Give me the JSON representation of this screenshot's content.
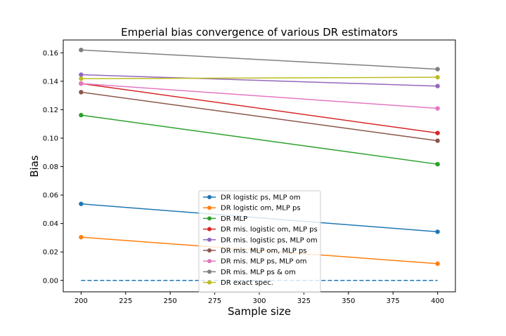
{
  "chart_data": {
    "type": "line",
    "title": "Emperial bias convergence of various DR estimators",
    "xlabel": "Sample size",
    "ylabel": "Bias",
    "xlim": [
      190,
      410
    ],
    "ylim": [
      -0.008,
      0.169
    ],
    "xticks": [
      200,
      225,
      250,
      275,
      300,
      325,
      350,
      375,
      400
    ],
    "yticks": [
      0.0,
      0.02,
      0.04,
      0.06,
      0.08,
      0.1,
      0.12,
      0.14,
      0.16
    ],
    "ytick_labels": [
      "0.00",
      "0.02",
      "0.04",
      "0.06",
      "0.08",
      "0.10",
      "0.12",
      "0.14",
      "0.16"
    ],
    "grid": false,
    "legend_position": "lower center",
    "x": [
      200,
      400
    ],
    "series": [
      {
        "name": "DR logistic ps, MLP om",
        "values": [
          0.0538,
          0.0342
        ],
        "color": "#1f77b4"
      },
      {
        "name": "DR logistic om, MLP ps",
        "values": [
          0.0304,
          0.0118
        ],
        "color": "#ff7f0e"
      },
      {
        "name": "DR MLP",
        "values": [
          0.1162,
          0.0817
        ],
        "color": "#2ca02c"
      },
      {
        "name": "DR mis. logistic om, MLP ps",
        "values": [
          0.1384,
          0.1036
        ],
        "color": "#d62728"
      },
      {
        "name": "DR mis. logistic ps, MLP om",
        "values": [
          0.1446,
          0.1366
        ],
        "color": "#9467bd"
      },
      {
        "name": "DR mis. MLP om, MLP ps",
        "values": [
          0.1323,
          0.0982
        ],
        "color": "#8c564b"
      },
      {
        "name": "DR mis. MLP ps, MLP om",
        "values": [
          0.1384,
          0.1209
        ],
        "color": "#e377c2"
      },
      {
        "name": "DR mis. MLP ps & om",
        "values": [
          0.162,
          0.1485
        ],
        "color": "#7f7f7f"
      },
      {
        "name": "DR exact spec.",
        "values": [
          0.1418,
          0.1428
        ],
        "color": "#bcbd22"
      }
    ],
    "reference_line": {
      "y": 0.0,
      "x": [
        200,
        400
      ],
      "style": "dashed",
      "color": "#1f77b4"
    }
  }
}
